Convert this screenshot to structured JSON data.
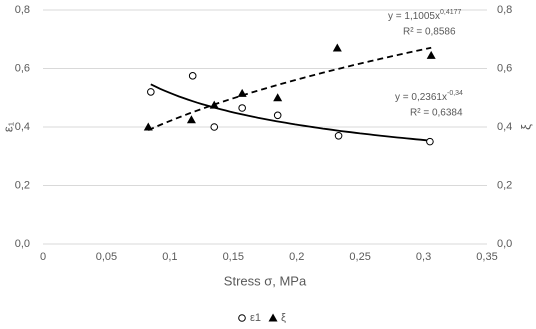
{
  "chart_data": {
    "type": "scatter",
    "x_label": "Stress σ, MPa",
    "y_label": "ε₁",
    "y2_label": "ξ",
    "xlim": [
      0,
      0.35
    ],
    "xticks": [
      0,
      {
        "value": 0.05,
        "label": "0,05"
      },
      {
        "value": 0.1,
        "label": "0,1"
      },
      {
        "value": 0.15,
        "label": "0,15"
      },
      {
        "value": 0.2,
        "label": "0,2"
      },
      {
        "value": 0.25,
        "label": "0,25"
      },
      {
        "value": 0.3,
        "label": "0,3"
      },
      {
        "value": 0.35,
        "label": "0,35"
      }
    ],
    "ylim": [
      0,
      0.8
    ],
    "yticks": [
      {
        "value": 0,
        "label": "0,0"
      },
      {
        "value": 0.2,
        "label": "0,2"
      },
      {
        "value": 0.4,
        "label": "0,4"
      },
      {
        "value": 0.6,
        "label": "0,6"
      },
      {
        "value": 0.8,
        "label": "0,8"
      }
    ],
    "y2lim": [
      0,
      0.8
    ],
    "y2ticks": [
      {
        "value": 0,
        "label": "0,0"
      },
      {
        "value": 0.2,
        "label": "0,2"
      },
      {
        "value": 0.4,
        "label": "0,4"
      },
      {
        "value": 0.6,
        "label": "0,6"
      },
      {
        "value": 0.8,
        "label": "0,8"
      }
    ],
    "grid": true,
    "legend": "bottom",
    "series": [
      {
        "name": "ε1",
        "marker": "circle",
        "color": "#000000",
        "x": [
          0.085,
          0.118,
          0.135,
          0.157,
          0.185,
          0.233,
          0.305
        ],
        "values": [
          0.52,
          0.575,
          0.4,
          0.465,
          0.44,
          0.37,
          0.35
        ],
        "trendline": {
          "a": 0.2361,
          "b": -0.34,
          "line_style": "solid",
          "equation": "y = 0,2361x",
          "exponent": "-0,34",
          "r2": "R² = 0,6384"
        }
      },
      {
        "name": "ξ",
        "marker": "triangle",
        "color": "#000000",
        "axis": "y2",
        "x": [
          0.083,
          0.117,
          0.135,
          0.157,
          0.185,
          0.232,
          0.306
        ],
        "values": [
          0.4,
          0.425,
          0.475,
          0.515,
          0.5,
          0.67,
          0.645
        ],
        "trendline": {
          "a": 1.1005,
          "b": 0.4177,
          "line_style": "dashed",
          "equation": "y = 1,1005x",
          "exponent": "0,4177",
          "r2": "R² = 0,8586"
        }
      }
    ]
  }
}
